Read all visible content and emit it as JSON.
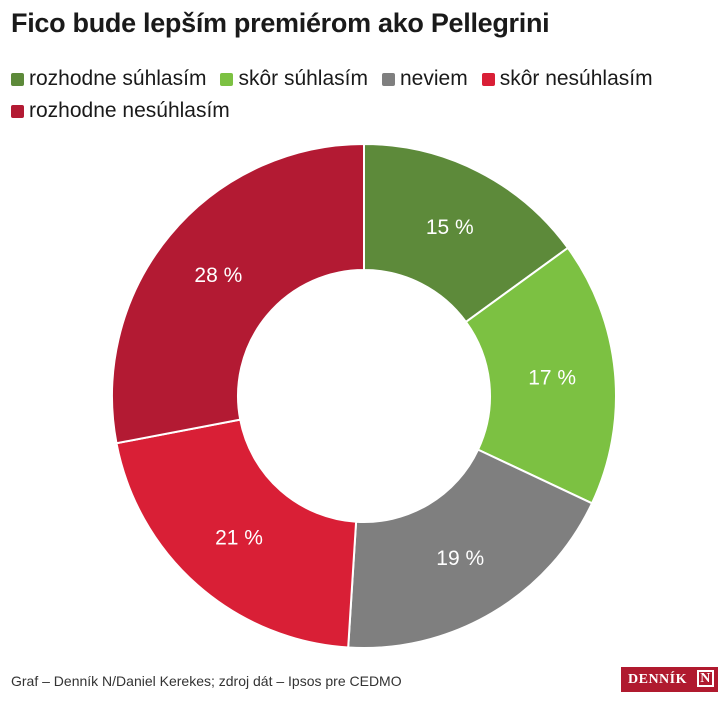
{
  "chart_data": {
    "type": "pie",
    "title": "Fico bude lepším premiérom ako Pellegrini",
    "hole": true,
    "legend_position": "top-left",
    "categories": [
      "rozhodne súhlasím",
      "skôr súhlasím",
      "neviem",
      "skôr nesúhlasím",
      "rozhodne nesúhlasím"
    ],
    "values": [
      15,
      17,
      19,
      21,
      28
    ],
    "value_labels": [
      "15 %",
      "17 %",
      "19 %",
      "21 %",
      "28 %"
    ],
    "colors": [
      "#5d8a3a",
      "#7cc142",
      "#7f7f7f",
      "#d91f36",
      "#b31a33"
    ]
  },
  "footer": {
    "source": "Graf – Denník N/Daniel Kerekes; zdroj dát – Ipsos pre CEDMO"
  },
  "logo": {
    "text": "DENNÍK",
    "mark": "N"
  }
}
